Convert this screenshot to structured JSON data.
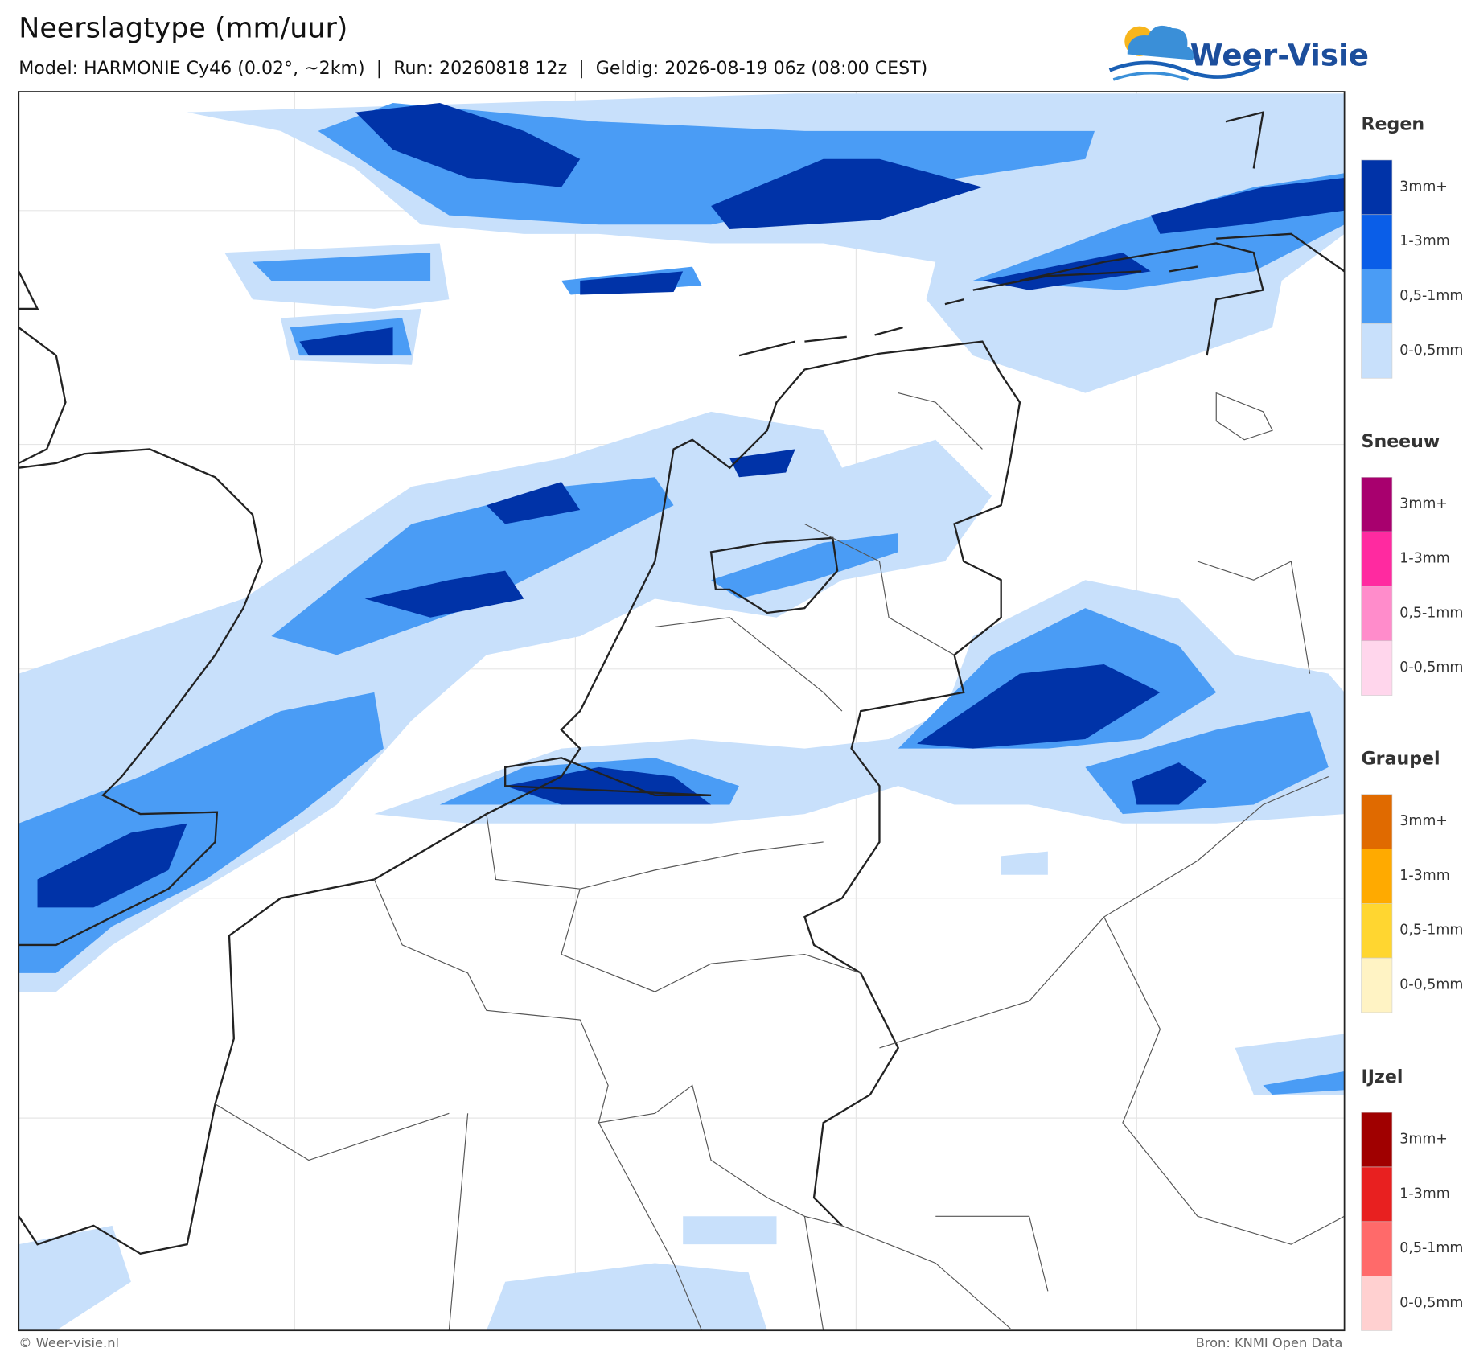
{
  "header": {
    "title": "Neerslagtype (mm/uur)",
    "subtitle": "Model: HARMONIE Cy46 (0.02°, ~2km)  |  Run: 20260818 12z  |  Geldig: 2026-08-19 06z (08:00 CEST)",
    "logo": "Weer-Visie"
  },
  "legend": {
    "groups": [
      {
        "title": "Regen",
        "items": [
          {
            "label": "3mm+",
            "color": "#0033a8"
          },
          {
            "label": "1-3mm",
            "color": "#0a5ee8"
          },
          {
            "label": "0,5-1mm",
            "color": "#4a9cf5"
          },
          {
            "label": "0-0,5mm",
            "color": "#c8e0fb"
          }
        ]
      },
      {
        "title": "Sneeuw",
        "items": [
          {
            "label": "3mm+",
            "color": "#a8006e"
          },
          {
            "label": "1-3mm",
            "color": "#ff2aa0"
          },
          {
            "label": "0,5-1mm",
            "color": "#ff8ccb"
          },
          {
            "label": "0-0,5mm",
            "color": "#ffd6ec"
          }
        ]
      },
      {
        "title": "Graupel",
        "items": [
          {
            "label": "3mm+",
            "color": "#e06a00"
          },
          {
            "label": "1-3mm",
            "color": "#ffaa00"
          },
          {
            "label": "0,5-1mm",
            "color": "#ffd630"
          },
          {
            "label": "0-0,5mm",
            "color": "#fff3c4"
          }
        ]
      },
      {
        "title": "IJzel",
        "items": [
          {
            "label": "3mm+",
            "color": "#a00000"
          },
          {
            "label": "1-3mm",
            "color": "#e82020"
          },
          {
            "label": "0,5-1mm",
            "color": "#ff6a6a"
          },
          {
            "label": "0-0,5mm",
            "color": "#ffd0d0"
          }
        ]
      }
    ]
  },
  "footer": {
    "copyright": "© Weer-visie.nl",
    "source": "Bron: KNMI Open Data"
  }
}
